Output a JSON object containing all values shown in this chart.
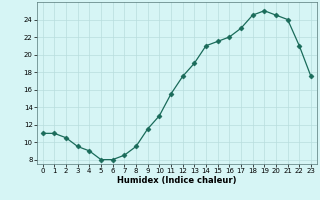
{
  "x": [
    0,
    1,
    2,
    3,
    4,
    5,
    6,
    7,
    8,
    9,
    10,
    11,
    12,
    13,
    14,
    15,
    16,
    17,
    18,
    19,
    20,
    21,
    22,
    23
  ],
  "y": [
    11,
    11,
    10.5,
    9.5,
    9,
    8,
    8,
    8.5,
    9.5,
    11.5,
    13,
    15.5,
    17.5,
    19,
    21,
    21.5,
    22,
    23,
    24.5,
    25,
    24.5,
    24,
    21,
    17.5
  ],
  "xlabel": "Humidex (Indice chaleur)",
  "ylim": [
    7.5,
    26
  ],
  "xlim": [
    -0.5,
    23.5
  ],
  "yticks": [
    8,
    10,
    12,
    14,
    16,
    18,
    20,
    22,
    24
  ],
  "xticks": [
    0,
    1,
    2,
    3,
    4,
    5,
    6,
    7,
    8,
    9,
    10,
    11,
    12,
    13,
    14,
    15,
    16,
    17,
    18,
    19,
    20,
    21,
    22,
    23
  ],
  "line_color": "#1a6b5a",
  "marker": "D",
  "marker_size": 2.5,
  "bg_color": "#d6f5f5",
  "grid_color": "#b8dede"
}
